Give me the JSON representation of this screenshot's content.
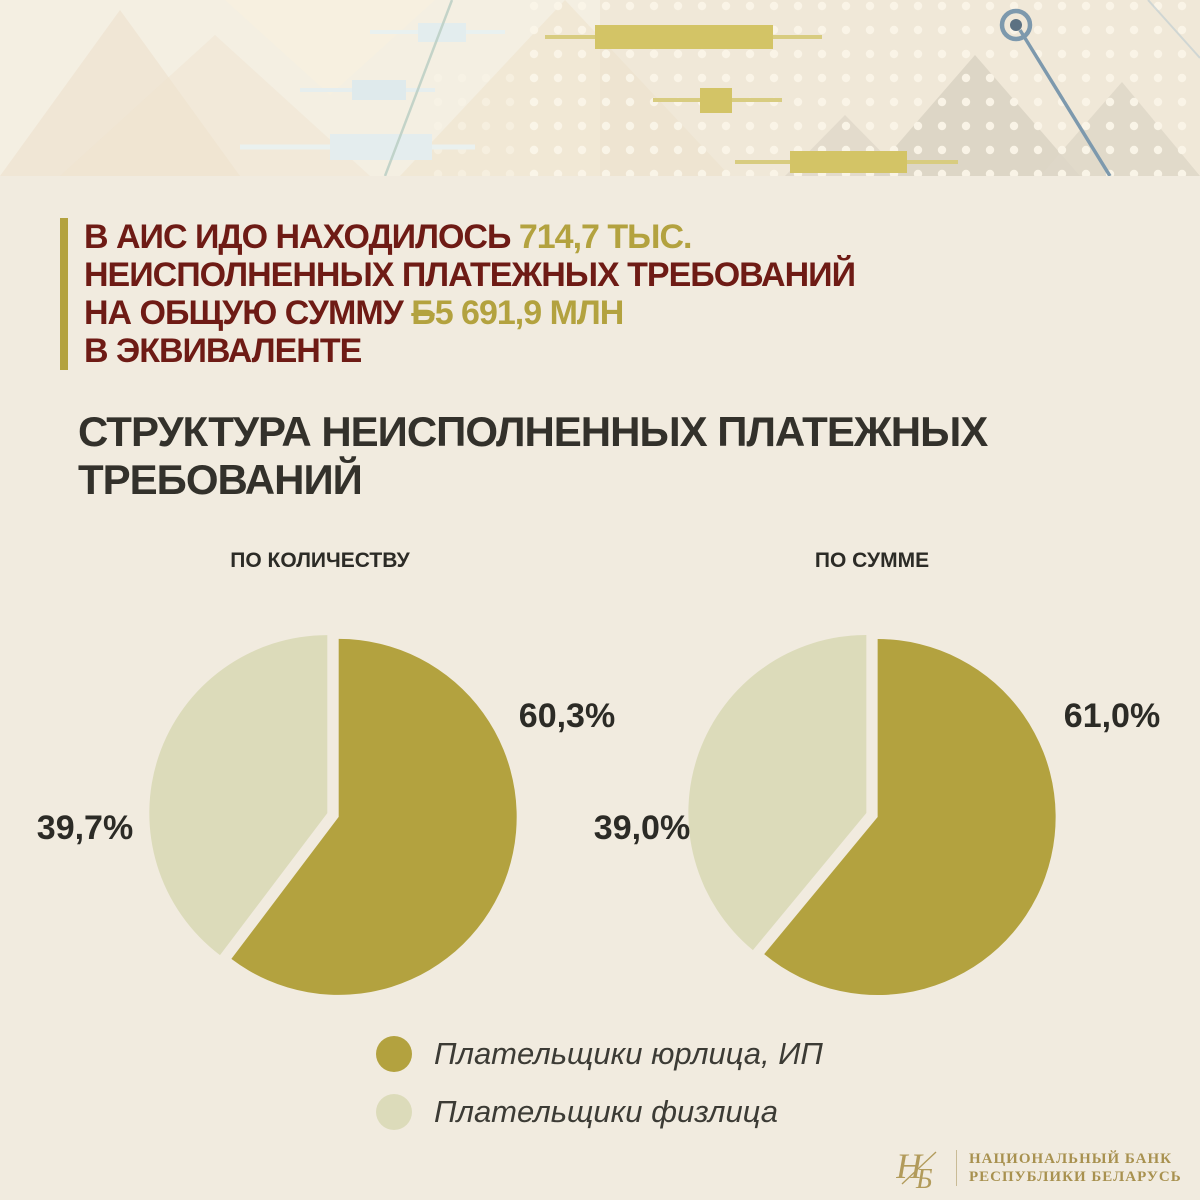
{
  "headline": {
    "line1_red": "В АИС ИДО НАХОДИЛОСЬ ",
    "line1_accent": "714,7 ТЫС.",
    "line2_red": "НЕИСПОЛНЕННЫХ ПЛАТЕЖНЫХ ТРЕБОВАНИЙ",
    "line3_red": "НА ОБЩУЮ СУММУ ",
    "line3_currency": "Б",
    "line3_accent": "5 691,9 МЛН",
    "line4_red": "В ЭКВИВАЛЕНТЕ"
  },
  "section_title": "СТРУКТУРА НЕИСПОЛНЕННЫХ ПЛАТЕЖНЫХ ТРЕБОВАНИЙ",
  "chart_data": [
    {
      "type": "pie",
      "title": "ПО КОЛИЧЕСТВУ",
      "labels": [
        "Плательщики юрлица, ИП",
        "Плательщики физлица"
      ],
      "values": [
        60.3,
        39.7
      ],
      "value_labels": [
        "60,3%",
        "39,7%"
      ],
      "colors": [
        "#b3a23f",
        "#dcdbba"
      ],
      "start_angle_deg": 0,
      "direction": "clockwise",
      "legend_position": "bottom"
    },
    {
      "type": "pie",
      "title": "ПО СУММЕ",
      "labels": [
        "Плательщики юрлица, ИП",
        "Плательщики физлица"
      ],
      "values": [
        61.0,
        39.0
      ],
      "value_labels": [
        "61,0%",
        "39,0%"
      ],
      "colors": [
        "#b3a23f",
        "#dcdbba"
      ],
      "start_angle_deg": 0,
      "direction": "clockwise",
      "legend_position": "bottom"
    }
  ],
  "legend": {
    "items": [
      {
        "label": "Плательщики юрлица, ИП",
        "color": "#b3a23f"
      },
      {
        "label": "Плательщики физлица",
        "color": "#dcdbba"
      }
    ]
  },
  "footer": {
    "logo_monogram": "НБ",
    "org_line1": "НАЦИОНАЛЬНЫЙ БАНК",
    "org_line2": "РЕСПУБЛИКИ БЕЛАРУСЬ"
  },
  "colors": {
    "background": "#f1ebdf",
    "headline_text": "#6e1b15",
    "accent_olive": "#b3a23f",
    "title_text": "#33312b",
    "footer_gold": "#a8914f"
  }
}
